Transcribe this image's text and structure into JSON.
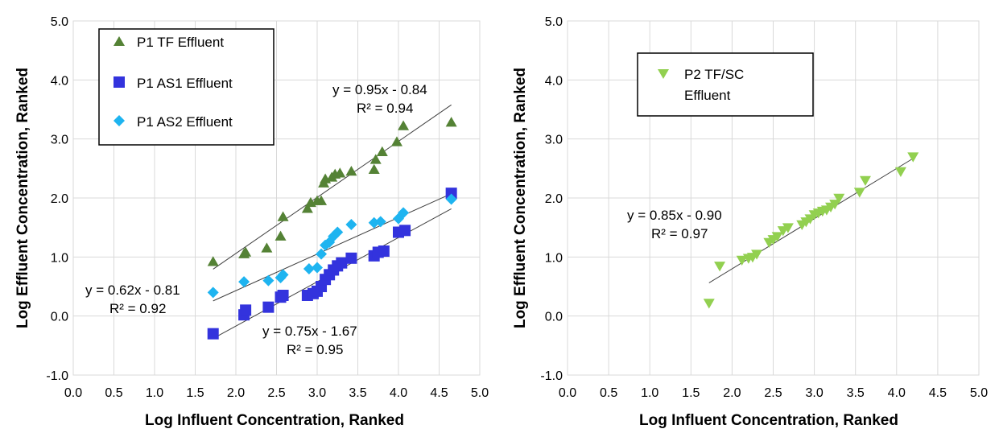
{
  "chart_data": [
    {
      "type": "scatter",
      "title": "",
      "xlabel": "Log Influent  Concentration,  Ranked",
      "ylabel": "Log Effluent  Concentration,  Ranked",
      "xlim": [
        0.0,
        5.0
      ],
      "ylim": [
        -1.0,
        5.0
      ],
      "x_ticks": [
        "0.0",
        "0.5",
        "1.0",
        "1.5",
        "2.0",
        "2.5",
        "3.0",
        "3.5",
        "4.0",
        "4.5",
        "5.0"
      ],
      "y_ticks": [
        "-1.0",
        "0.0",
        "1.0",
        "2.0",
        "3.0",
        "4.0",
        "5.0"
      ],
      "grid": true,
      "legend_position": "top-left",
      "series": [
        {
          "name": "P1 TF Effluent",
          "marker": "triangle-up",
          "color": "#548235",
          "points": [
            [
              1.72,
              0.92
            ],
            [
              2.1,
              1.05
            ],
            [
              2.12,
              1.08
            ],
            [
              2.38,
              1.15
            ],
            [
              2.55,
              1.35
            ],
            [
              2.58,
              1.68
            ],
            [
              2.88,
              1.82
            ],
            [
              2.92,
              1.92
            ],
            [
              3.0,
              1.95
            ],
            [
              3.05,
              1.95
            ],
            [
              3.08,
              2.25
            ],
            [
              3.1,
              2.32
            ],
            [
              3.18,
              2.35
            ],
            [
              3.22,
              2.4
            ],
            [
              3.28,
              2.42
            ],
            [
              3.42,
              2.45
            ],
            [
              3.7,
              2.48
            ],
            [
              3.72,
              2.65
            ],
            [
              3.8,
              2.78
            ],
            [
              3.98,
              2.95
            ],
            [
              4.06,
              3.22
            ],
            [
              4.65,
              3.28
            ]
          ],
          "trendline": {
            "slope": 0.95,
            "intercept": -0.84,
            "x_range": [
              1.72,
              4.65
            ]
          }
        },
        {
          "name": "P1 AS1 Effluent",
          "marker": "square",
          "color": "#3333DD",
          "points": [
            [
              1.72,
              -0.3
            ],
            [
              2.1,
              0.02
            ],
            [
              2.12,
              0.1
            ],
            [
              2.4,
              0.15
            ],
            [
              2.55,
              0.32
            ],
            [
              2.58,
              0.35
            ],
            [
              2.88,
              0.35
            ],
            [
              2.95,
              0.38
            ],
            [
              3.0,
              0.42
            ],
            [
              3.05,
              0.5
            ],
            [
              3.1,
              0.62
            ],
            [
              3.15,
              0.7
            ],
            [
              3.2,
              0.78
            ],
            [
              3.25,
              0.85
            ],
            [
              3.3,
              0.9
            ],
            [
              3.42,
              0.98
            ],
            [
              3.7,
              1.02
            ],
            [
              3.75,
              1.08
            ],
            [
              3.82,
              1.1
            ],
            [
              4.0,
              1.42
            ],
            [
              4.08,
              1.45
            ],
            [
              4.65,
              2.08
            ]
          ],
          "trendline": {
            "slope": 0.75,
            "intercept": -1.67,
            "x_range": [
              1.72,
              4.65
            ]
          }
        },
        {
          "name": "P1 AS2 Effluent",
          "marker": "diamond",
          "color": "#1EB4F0",
          "points": [
            [
              1.72,
              0.4
            ],
            [
              2.1,
              0.58
            ],
            [
              2.4,
              0.6
            ],
            [
              2.55,
              0.65
            ],
            [
              2.58,
              0.7
            ],
            [
              2.9,
              0.8
            ],
            [
              3.0,
              0.82
            ],
            [
              3.05,
              1.05
            ],
            [
              3.1,
              1.2
            ],
            [
              3.15,
              1.25
            ],
            [
              3.2,
              1.35
            ],
            [
              3.25,
              1.42
            ],
            [
              3.42,
              1.55
            ],
            [
              3.7,
              1.58
            ],
            [
              3.78,
              1.6
            ],
            [
              4.0,
              1.65
            ],
            [
              4.06,
              1.75
            ],
            [
              4.65,
              1.98
            ]
          ],
          "trendline": {
            "slope": 0.62,
            "intercept": -0.81,
            "x_range": [
              1.72,
              4.65
            ]
          }
        }
      ],
      "annotations": [
        {
          "line1": "y = 0.95x - 0.84",
          "line2": "R² = 0.94"
        },
        {
          "line1": "y = 0.62x - 0.81",
          "line2": "R² = 0.92"
        },
        {
          "line1": "y = 0.75x - 1.67",
          "line2": "R² = 0.95"
        }
      ]
    },
    {
      "type": "scatter",
      "title": "",
      "xlabel": "Log Influent  Concentration,  Ranked",
      "ylabel": "Log Effluent  Concentration,  Ranked",
      "xlim": [
        0.0,
        5.0
      ],
      "ylim": [
        -1.0,
        5.0
      ],
      "x_ticks": [
        "0.0",
        "0.5",
        "1.0",
        "1.5",
        "2.0",
        "2.5",
        "3.0",
        "3.5",
        "4.0",
        "4.5",
        "5.0"
      ],
      "y_ticks": [
        "-1.0",
        "0.0",
        "1.0",
        "2.0",
        "3.0",
        "4.0",
        "5.0"
      ],
      "grid": true,
      "legend_position": "top-center",
      "series": [
        {
          "name": "P2 TF/SC Effluent",
          "legend_lines": [
            "P2 TF/SC",
            "Effluent"
          ],
          "marker": "triangle-down",
          "color": "#92D050",
          "points": [
            [
              1.72,
              0.22
            ],
            [
              1.85,
              0.85
            ],
            [
              2.12,
              0.95
            ],
            [
              2.2,
              0.98
            ],
            [
              2.25,
              1.0
            ],
            [
              2.3,
              1.05
            ],
            [
              2.45,
              1.25
            ],
            [
              2.5,
              1.3
            ],
            [
              2.55,
              1.35
            ],
            [
              2.62,
              1.45
            ],
            [
              2.68,
              1.5
            ],
            [
              2.85,
              1.55
            ],
            [
              2.9,
              1.6
            ],
            [
              2.95,
              1.65
            ],
            [
              3.0,
              1.72
            ],
            [
              3.05,
              1.75
            ],
            [
              3.1,
              1.78
            ],
            [
              3.15,
              1.8
            ],
            [
              3.2,
              1.85
            ],
            [
              3.25,
              1.9
            ],
            [
              3.3,
              2.0
            ],
            [
              3.55,
              2.1
            ],
            [
              3.62,
              2.3
            ],
            [
              4.05,
              2.45
            ],
            [
              4.2,
              2.7
            ]
          ],
          "trendline": {
            "slope": 0.85,
            "intercept": -0.9,
            "x_range": [
              1.72,
              4.2
            ]
          }
        }
      ],
      "annotations": [
        {
          "line1": "y = 0.85x - 0.90",
          "line2": "R² = 0.97"
        }
      ]
    }
  ]
}
